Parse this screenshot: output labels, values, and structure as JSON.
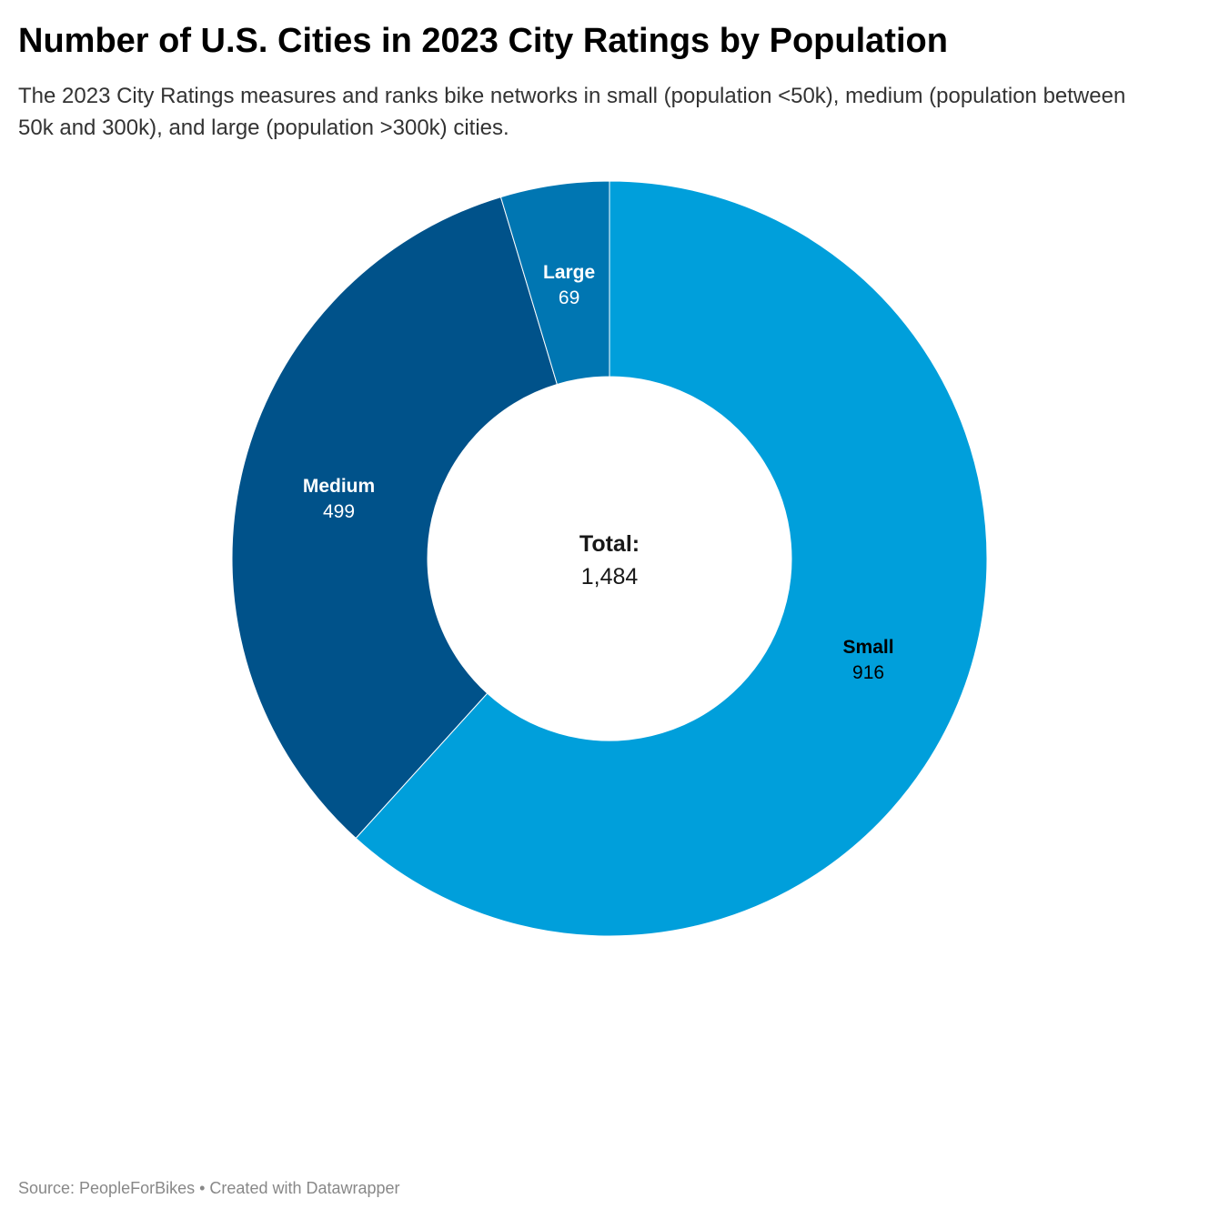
{
  "title": "Number of U.S. Cities in 2023 City Ratings by Population",
  "subtitle": "The 2023 City Ratings measures and ranks bike networks in small (population <50k), medium (population between 50k and 300k), and large (population >300k) cities.",
  "chart_data": {
    "type": "pie",
    "style": "donut",
    "categories": [
      "Small",
      "Medium",
      "Large"
    ],
    "values": [
      916,
      499,
      69
    ],
    "colors": [
      "#009fdb",
      "#00528a",
      "#0076b2"
    ],
    "label_colors": [
      "#000000",
      "#ffffff",
      "#ffffff"
    ],
    "center_label": "Total:",
    "center_value": "1,484",
    "labels": {
      "Small": "916",
      "Medium": "499",
      "Large": "69"
    }
  },
  "footer": {
    "source": "Source: PeopleForBikes",
    "separator": " • ",
    "credit": "Created with Datawrapper"
  }
}
